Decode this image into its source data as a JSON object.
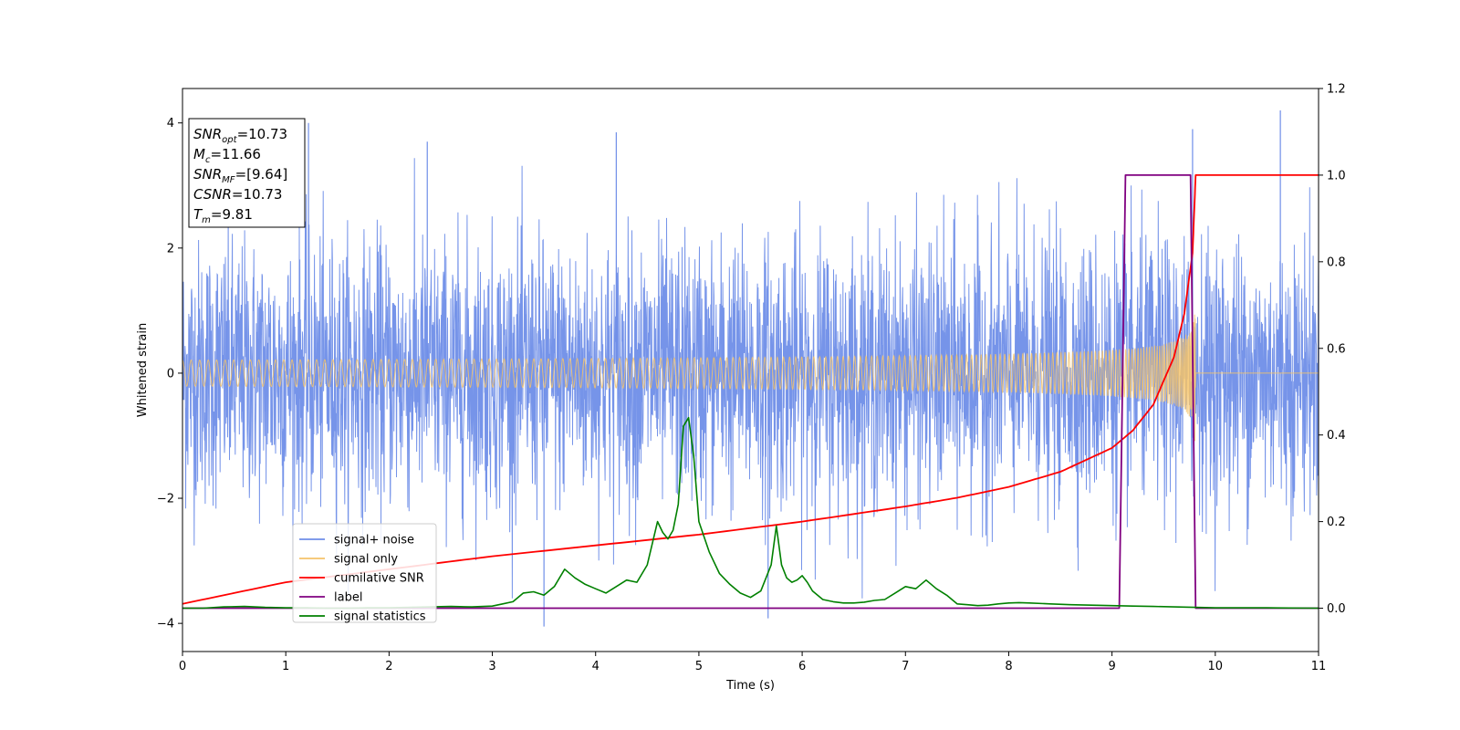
{
  "chart_data": {
    "type": "line",
    "xlabel": "Time (s)",
    "ylabel_left": "Whitened strain",
    "xlim": [
      0,
      11
    ],
    "ylim_left": [
      -4.45,
      4.55
    ],
    "ylim_right": [
      -0.1,
      1.2
    ],
    "x_ticks": [
      0,
      1,
      2,
      3,
      4,
      5,
      6,
      7,
      8,
      9,
      10,
      11
    ],
    "y_ticks_left": [
      -4,
      -2,
      0,
      2,
      4
    ],
    "y_ticks_right": [
      0.0,
      0.2,
      0.4,
      0.6,
      0.8,
      1.0,
      1.2
    ],
    "grid": false,
    "legend_position": "lower-left",
    "colors": {
      "signal_noise": "#6f8ee8",
      "signal_only": "#f5c36a",
      "cumulative_snr": "#ff0000",
      "label": "#800080",
      "signal_statistics": "#008000"
    },
    "series": [
      {
        "name": "signal+ noise",
        "axis": "left",
        "description_of_shape": "whitened noise, mostly between -2.5 and 2.5",
        "notable_peaks": [
          [
            1.22,
            4.0
          ],
          [
            2.37,
            3.7
          ],
          [
            4.2,
            3.85
          ],
          [
            9.78,
            3.9
          ],
          [
            10.63,
            4.2
          ],
          [
            3.5,
            -4.05
          ],
          [
            5.67,
            -3.92
          ]
        ]
      },
      {
        "name": "signal only",
        "axis": "left",
        "chirp": {
          "t_start": 0,
          "t_merge": 9.81,
          "amp_start": 0.02,
          "amp_end": 1.35
        }
      },
      {
        "name": "cumilative SNR",
        "axis": "right",
        "x": [
          0,
          1,
          2,
          3,
          4,
          5,
          6,
          7,
          7.5,
          8,
          8.5,
          9,
          9.2,
          9.4,
          9.6,
          9.7,
          9.78,
          9.81,
          11
        ],
        "y": [
          0.01,
          0.06,
          0.09,
          0.12,
          0.145,
          0.17,
          0.2,
          0.235,
          0.255,
          0.28,
          0.315,
          0.37,
          0.41,
          0.47,
          0.58,
          0.68,
          0.82,
          1.0,
          1.0
        ]
      },
      {
        "name": "label",
        "axis": "right",
        "x": [
          0,
          9.07,
          9.13,
          9.76,
          9.81,
          11
        ],
        "y": [
          0,
          0,
          1,
          1,
          0,
          0
        ]
      },
      {
        "name": "signal statistics",
        "axis": "right",
        "x": [
          0,
          0.2,
          0.4,
          0.6,
          0.8,
          1.0,
          1.2,
          1.4,
          1.6,
          1.8,
          2.0,
          2.2,
          2.4,
          2.6,
          2.8,
          3.0,
          3.1,
          3.2,
          3.3,
          3.4,
          3.5,
          3.6,
          3.7,
          3.8,
          3.9,
          4.0,
          4.1,
          4.2,
          4.3,
          4.4,
          4.5,
          4.6,
          4.65,
          4.7,
          4.75,
          4.8,
          4.85,
          4.9,
          4.95,
          5.0,
          5.1,
          5.2,
          5.3,
          5.4,
          5.5,
          5.6,
          5.7,
          5.75,
          5.8,
          5.85,
          5.9,
          5.95,
          6.0,
          6.05,
          6.1,
          6.2,
          6.3,
          6.4,
          6.5,
          6.6,
          6.7,
          6.8,
          6.9,
          7.0,
          7.1,
          7.2,
          7.3,
          7.4,
          7.5,
          7.6,
          7.7,
          7.8,
          7.9,
          8.0,
          8.1,
          8.2,
          8.4,
          8.6,
          8.8,
          9.0,
          9.2,
          9.4,
          9.6,
          9.8,
          10.0,
          10.5,
          11.0
        ],
        "y": [
          0.0,
          0.0,
          0.003,
          0.004,
          0.002,
          0.001,
          0.001,
          0.0,
          0.0,
          0.001,
          0.001,
          0.002,
          0.003,
          0.004,
          0.003,
          0.005,
          0.01,
          0.015,
          0.035,
          0.038,
          0.03,
          0.05,
          0.09,
          0.07,
          0.055,
          0.045,
          0.035,
          0.05,
          0.065,
          0.06,
          0.1,
          0.2,
          0.175,
          0.16,
          0.18,
          0.24,
          0.42,
          0.44,
          0.35,
          0.2,
          0.13,
          0.08,
          0.055,
          0.035,
          0.025,
          0.04,
          0.1,
          0.19,
          0.1,
          0.07,
          0.06,
          0.065,
          0.075,
          0.06,
          0.04,
          0.02,
          0.015,
          0.012,
          0.012,
          0.014,
          0.018,
          0.02,
          0.035,
          0.05,
          0.045,
          0.065,
          0.045,
          0.03,
          0.01,
          0.008,
          0.006,
          0.007,
          0.01,
          0.012,
          0.013,
          0.012,
          0.01,
          0.008,
          0.007,
          0.006,
          0.005,
          0.004,
          0.003,
          0.002,
          0.001,
          0.001,
          0.0
        ]
      }
    ],
    "legend_entries": [
      "signal+ noise",
      "signal only",
      "cumilative SNR",
      "label",
      "signal statistics"
    ],
    "annotation": {
      "lines": [
        {
          "base": "SNR",
          "sub": "opt",
          "value": "=10.73"
        },
        {
          "base": "M",
          "sub": "c",
          "value": "=11.66"
        },
        {
          "base": "SNR",
          "sub": "MF",
          "value": "=[9.64]"
        },
        {
          "base": "CSNR",
          "sub": "",
          "value": "=10.73"
        },
        {
          "base": "T",
          "sub": "m",
          "value": "=9.81"
        }
      ]
    }
  }
}
